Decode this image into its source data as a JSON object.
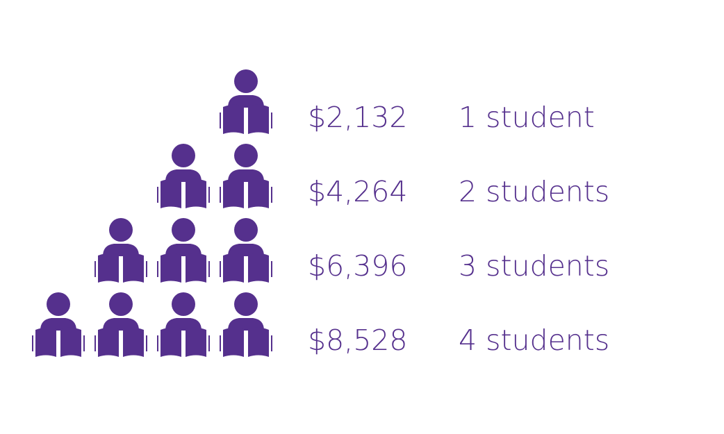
{
  "colors": {
    "icon": "#55308d",
    "text": "#55308d",
    "background": "#ffffff"
  },
  "icon": "student-reading-book-icon",
  "chart_data": {
    "type": "pictograph",
    "rows": [
      {
        "students": 1,
        "amount_label": "$2,132",
        "count_label": "1 student",
        "amount": 2132
      },
      {
        "students": 2,
        "amount_label": "$4,264",
        "count_label": "2 students",
        "amount": 4264
      },
      {
        "students": 3,
        "amount_label": "$6,396",
        "count_label": "3 students",
        "amount": 6396
      },
      {
        "students": 4,
        "amount_label": "$8,528",
        "count_label": "4 students",
        "amount": 8528
      }
    ]
  }
}
